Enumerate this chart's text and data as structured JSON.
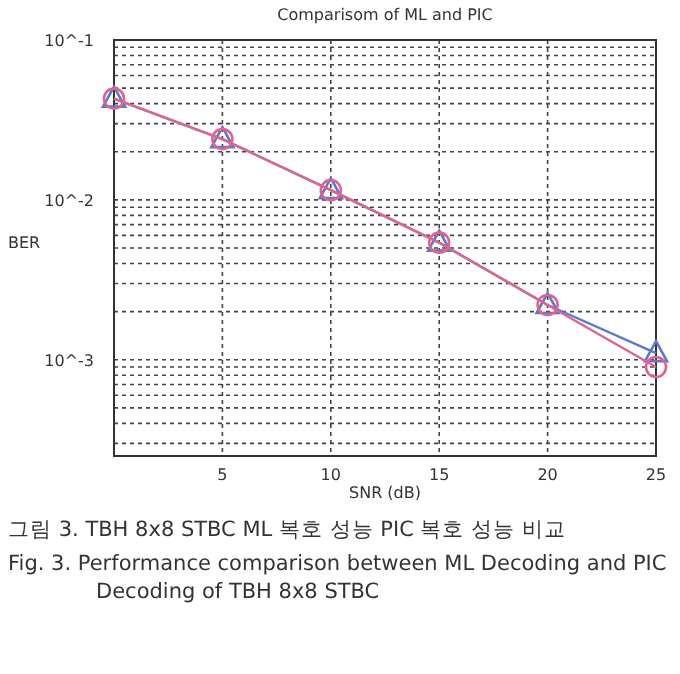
{
  "chart_data": {
    "type": "line",
    "title": "Comparisom of ML and PIC",
    "xlabel": "SNR (dB)",
    "ylabel": "BER",
    "x": [
      0,
      5,
      10,
      15,
      20,
      25
    ],
    "series": [
      {
        "color": "#5a78d0",
        "marker": "triangle",
        "values": [
          0.043,
          0.024,
          0.0115,
          0.0054,
          0.0022,
          0.0011
        ]
      },
      {
        "color": "#e0648c",
        "marker": "circle",
        "values": [
          0.043,
          0.024,
          0.0115,
          0.0054,
          0.0022,
          0.0009
        ]
      }
    ],
    "xlim": [
      0,
      25
    ],
    "xticks": [
      5,
      10,
      15,
      20,
      25
    ],
    "ylim": [
      0.00025,
      0.1
    ],
    "yticks": [
      {
        "value": 0.1,
        "label": "10^-1"
      },
      {
        "value": 0.01,
        "label": "10^-2"
      },
      {
        "value": 0.001,
        "label": "10^-3"
      }
    ],
    "log": "y",
    "grid": true,
    "line_style": "solid",
    "annotations": [
      "그림 3. TBH 8x8 STBC ML 복호 성능 PIC 복호 성능 비교",
      "Fig. 3. Performance comparison between ML Decoding and PIC Decoding of TBH 8x8 STBC"
    ]
  }
}
